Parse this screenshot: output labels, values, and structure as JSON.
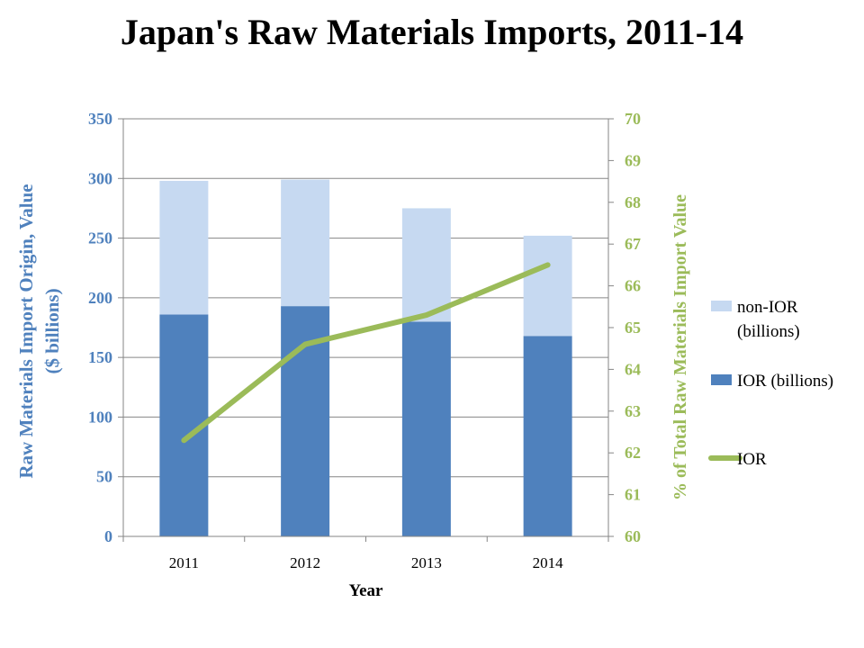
{
  "chart_data": {
    "type": "bar",
    "title": "Japan's Raw Materials Imports, 2011-14",
    "xlabel": "Year",
    "ylabel": "Raw Materials Import Origin, Value ($ billions)",
    "ylabel_lines": [
      "Raw Materials Import Origin, Value",
      "($ billions)"
    ],
    "y2label": "% of Total Raw Materials Import Value",
    "categories": [
      "2011",
      "2012",
      "2013",
      "2014"
    ],
    "ylim": [
      0,
      350
    ],
    "yticks": [
      0,
      50,
      100,
      150,
      200,
      250,
      300,
      350
    ],
    "y2lim": [
      60,
      70
    ],
    "y2ticks": [
      60,
      61,
      62,
      63,
      64,
      65,
      66,
      67,
      68,
      69,
      70
    ],
    "stacked": true,
    "grid": true,
    "legend_position": "right",
    "series": [
      {
        "name": "IOR (billions)",
        "type": "bar",
        "axis": "left",
        "color": "#4f81bd",
        "values": [
          186,
          193,
          180,
          168
        ]
      },
      {
        "name": "non-IOR (billions)",
        "type": "bar",
        "axis": "left",
        "color": "#c6d9f1",
        "values": [
          112,
          106,
          95,
          84
        ]
      },
      {
        "name": "IOR",
        "type": "line",
        "axis": "right",
        "color": "#9bbb59",
        "values": [
          62.3,
          64.6,
          65.3,
          66.5
        ]
      }
    ],
    "legend": [
      {
        "lines": [
          "non-IOR",
          "(billions)"
        ],
        "color": "#c6d9f1",
        "marker": "square"
      },
      {
        "lines": [
          "IOR (billions)"
        ],
        "color": "#4f81bd",
        "marker": "square"
      },
      {
        "lines": [
          "IOR"
        ],
        "color": "#9bbb59",
        "marker": "line"
      }
    ],
    "colors": {
      "left_axis": "#4f81bd",
      "right_axis": "#9bbb59",
      "grid": "#868686"
    }
  }
}
